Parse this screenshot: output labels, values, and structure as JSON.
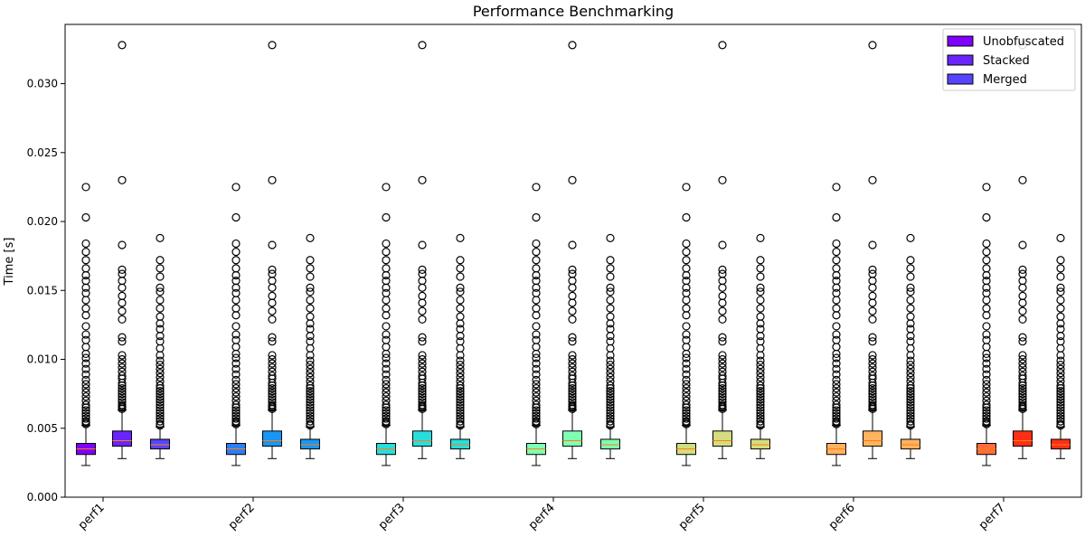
{
  "chart_data": {
    "type": "box",
    "title": "Performance Benchmarking",
    "ylabel": "Time [s]",
    "xlabel": "",
    "categories": [
      "perf1",
      "perf2",
      "perf3",
      "perf4",
      "perf5",
      "perf6",
      "perf7"
    ],
    "ylim": [
      0.0,
      0.0343
    ],
    "yticks": [
      0.0,
      0.005,
      0.01,
      0.015,
      0.02,
      0.025,
      0.03
    ],
    "ytick_labels": [
      "0.000",
      "0.005",
      "0.010",
      "0.015",
      "0.020",
      "0.025",
      "0.030"
    ],
    "legend": {
      "position": "top-right",
      "entries": [
        {
          "label": "Unobfuscated",
          "color": "#7f00ff"
        },
        {
          "label": "Stacked",
          "color": "#6a24fe"
        },
        {
          "label": "Merged",
          "color": "#5545fd"
        }
      ]
    },
    "series": [
      {
        "name": "Unobfuscated",
        "stats": {
          "whislo": 0.0023,
          "q1": 0.0031,
          "median": 0.0035,
          "q3": 0.0039,
          "whishi": 0.0052
        },
        "fliers": [
          0.0225,
          0.0203,
          0.0184,
          0.0178,
          0.0172,
          0.0166,
          0.0161,
          0.0157,
          0.0152,
          0.0148,
          0.0143,
          0.0137,
          0.0132,
          0.0124,
          0.0118,
          0.0114,
          0.0109,
          0.0104,
          0.0101,
          0.0097,
          0.0093,
          0.0089,
          0.0085,
          0.0082,
          0.0079,
          0.0076,
          0.0073,
          0.007,
          0.0067,
          0.0065,
          0.0063,
          0.0061,
          0.0059,
          0.0057,
          0.0055,
          0.0054,
          0.0053
        ]
      },
      {
        "name": "Stacked",
        "stats": {
          "whislo": 0.0028,
          "q1": 0.0037,
          "median": 0.0041,
          "q3": 0.0048,
          "whishi": 0.0063
        },
        "fliers": [
          0.0328,
          0.023,
          0.0183,
          0.0165,
          0.0162,
          0.0157,
          0.0152,
          0.0146,
          0.0141,
          0.0135,
          0.0129,
          0.0116,
          0.0113,
          0.0103,
          0.01,
          0.0097,
          0.0094,
          0.0091,
          0.0088,
          0.0086,
          0.0083,
          0.0081,
          0.0079,
          0.0077,
          0.0075,
          0.0073,
          0.0071,
          0.0069,
          0.0067,
          0.0066,
          0.0065,
          0.0064
        ]
      },
      {
        "name": "Merged",
        "stats": {
          "whislo": 0.0028,
          "q1": 0.0035,
          "median": 0.0038,
          "q3": 0.0042,
          "whishi": 0.0051
        },
        "fliers": [
          0.0188,
          0.0172,
          0.0166,
          0.016,
          0.0152,
          0.0149,
          0.0143,
          0.0137,
          0.0131,
          0.0126,
          0.0122,
          0.0117,
          0.0113,
          0.0108,
          0.0103,
          0.0099,
          0.0096,
          0.0093,
          0.009,
          0.0087,
          0.0084,
          0.0081,
          0.0079,
          0.0077,
          0.0075,
          0.0073,
          0.0071,
          0.0069,
          0.0067,
          0.0065,
          0.0063,
          0.0061,
          0.0059,
          0.0057,
          0.0055,
          0.0053,
          0.0052
        ]
      }
    ],
    "box_colors": [
      [
        "#7f00ff",
        "#6a24fe",
        "#5545fd"
      ],
      [
        "#2c7ef7",
        "#1996f3",
        "#1996f3"
      ],
      [
        "#2adddd",
        "#2adddd",
        "#2adddd"
      ],
      [
        "#80ffb4",
        "#80ffb4",
        "#80ffb4"
      ],
      [
        "#d4dd80",
        "#d4dd80",
        "#d4dd80"
      ],
      [
        "#ffb360",
        "#ffb360",
        "#ffb360"
      ],
      [
        "#ff6e3a",
        "#ff2e17",
        "#ff2e17"
      ]
    ],
    "median_color": "#ff7f0e"
  }
}
